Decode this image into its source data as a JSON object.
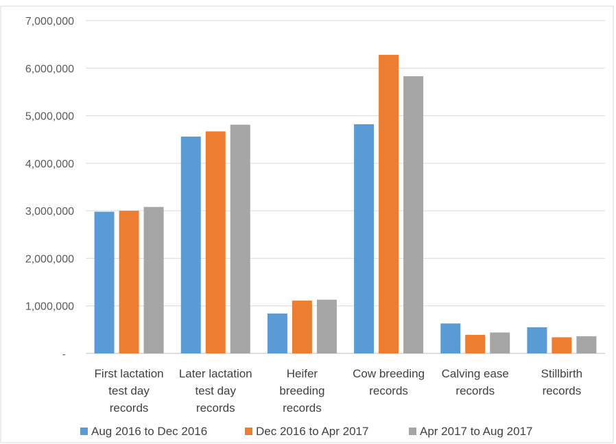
{
  "chart_data": {
    "type": "bar",
    "categories": [
      [
        "First lactation",
        "test day",
        "records"
      ],
      [
        "Later lactation",
        "test day",
        "records"
      ],
      [
        "Heifer",
        "breeding",
        "records"
      ],
      [
        "Cow breeding",
        "records"
      ],
      [
        "Calving ease",
        "records"
      ],
      [
        "Stillbirth",
        "records"
      ]
    ],
    "series": [
      {
        "name": "Aug 2016 to Dec 2016",
        "color": "#5B9BD5",
        "values": [
          2980000,
          4560000,
          840000,
          4820000,
          630000,
          550000
        ]
      },
      {
        "name": "Dec 2016 to Apr 2017",
        "color": "#ED7D31",
        "values": [
          3000000,
          4670000,
          1110000,
          6280000,
          390000,
          340000
        ]
      },
      {
        "name": "Apr 2017 to Aug 2017",
        "color": "#A5A5A5",
        "values": [
          3080000,
          4810000,
          1130000,
          5830000,
          440000,
          360000
        ]
      }
    ],
    "ylim": [
      0,
      7000000
    ],
    "yticks": [
      {
        "value": 0,
        "label": "-"
      },
      {
        "value": 1000000,
        "label": "1,000,000"
      },
      {
        "value": 2000000,
        "label": "2,000,000"
      },
      {
        "value": 3000000,
        "label": "3,000,000"
      },
      {
        "value": 4000000,
        "label": "4,000,000"
      },
      {
        "value": 5000000,
        "label": "5,000,000"
      },
      {
        "value": 6000000,
        "label": "6,000,000"
      },
      {
        "value": 7000000,
        "label": "7,000,000"
      }
    ],
    "grid": true,
    "legend_position": "bottom"
  }
}
